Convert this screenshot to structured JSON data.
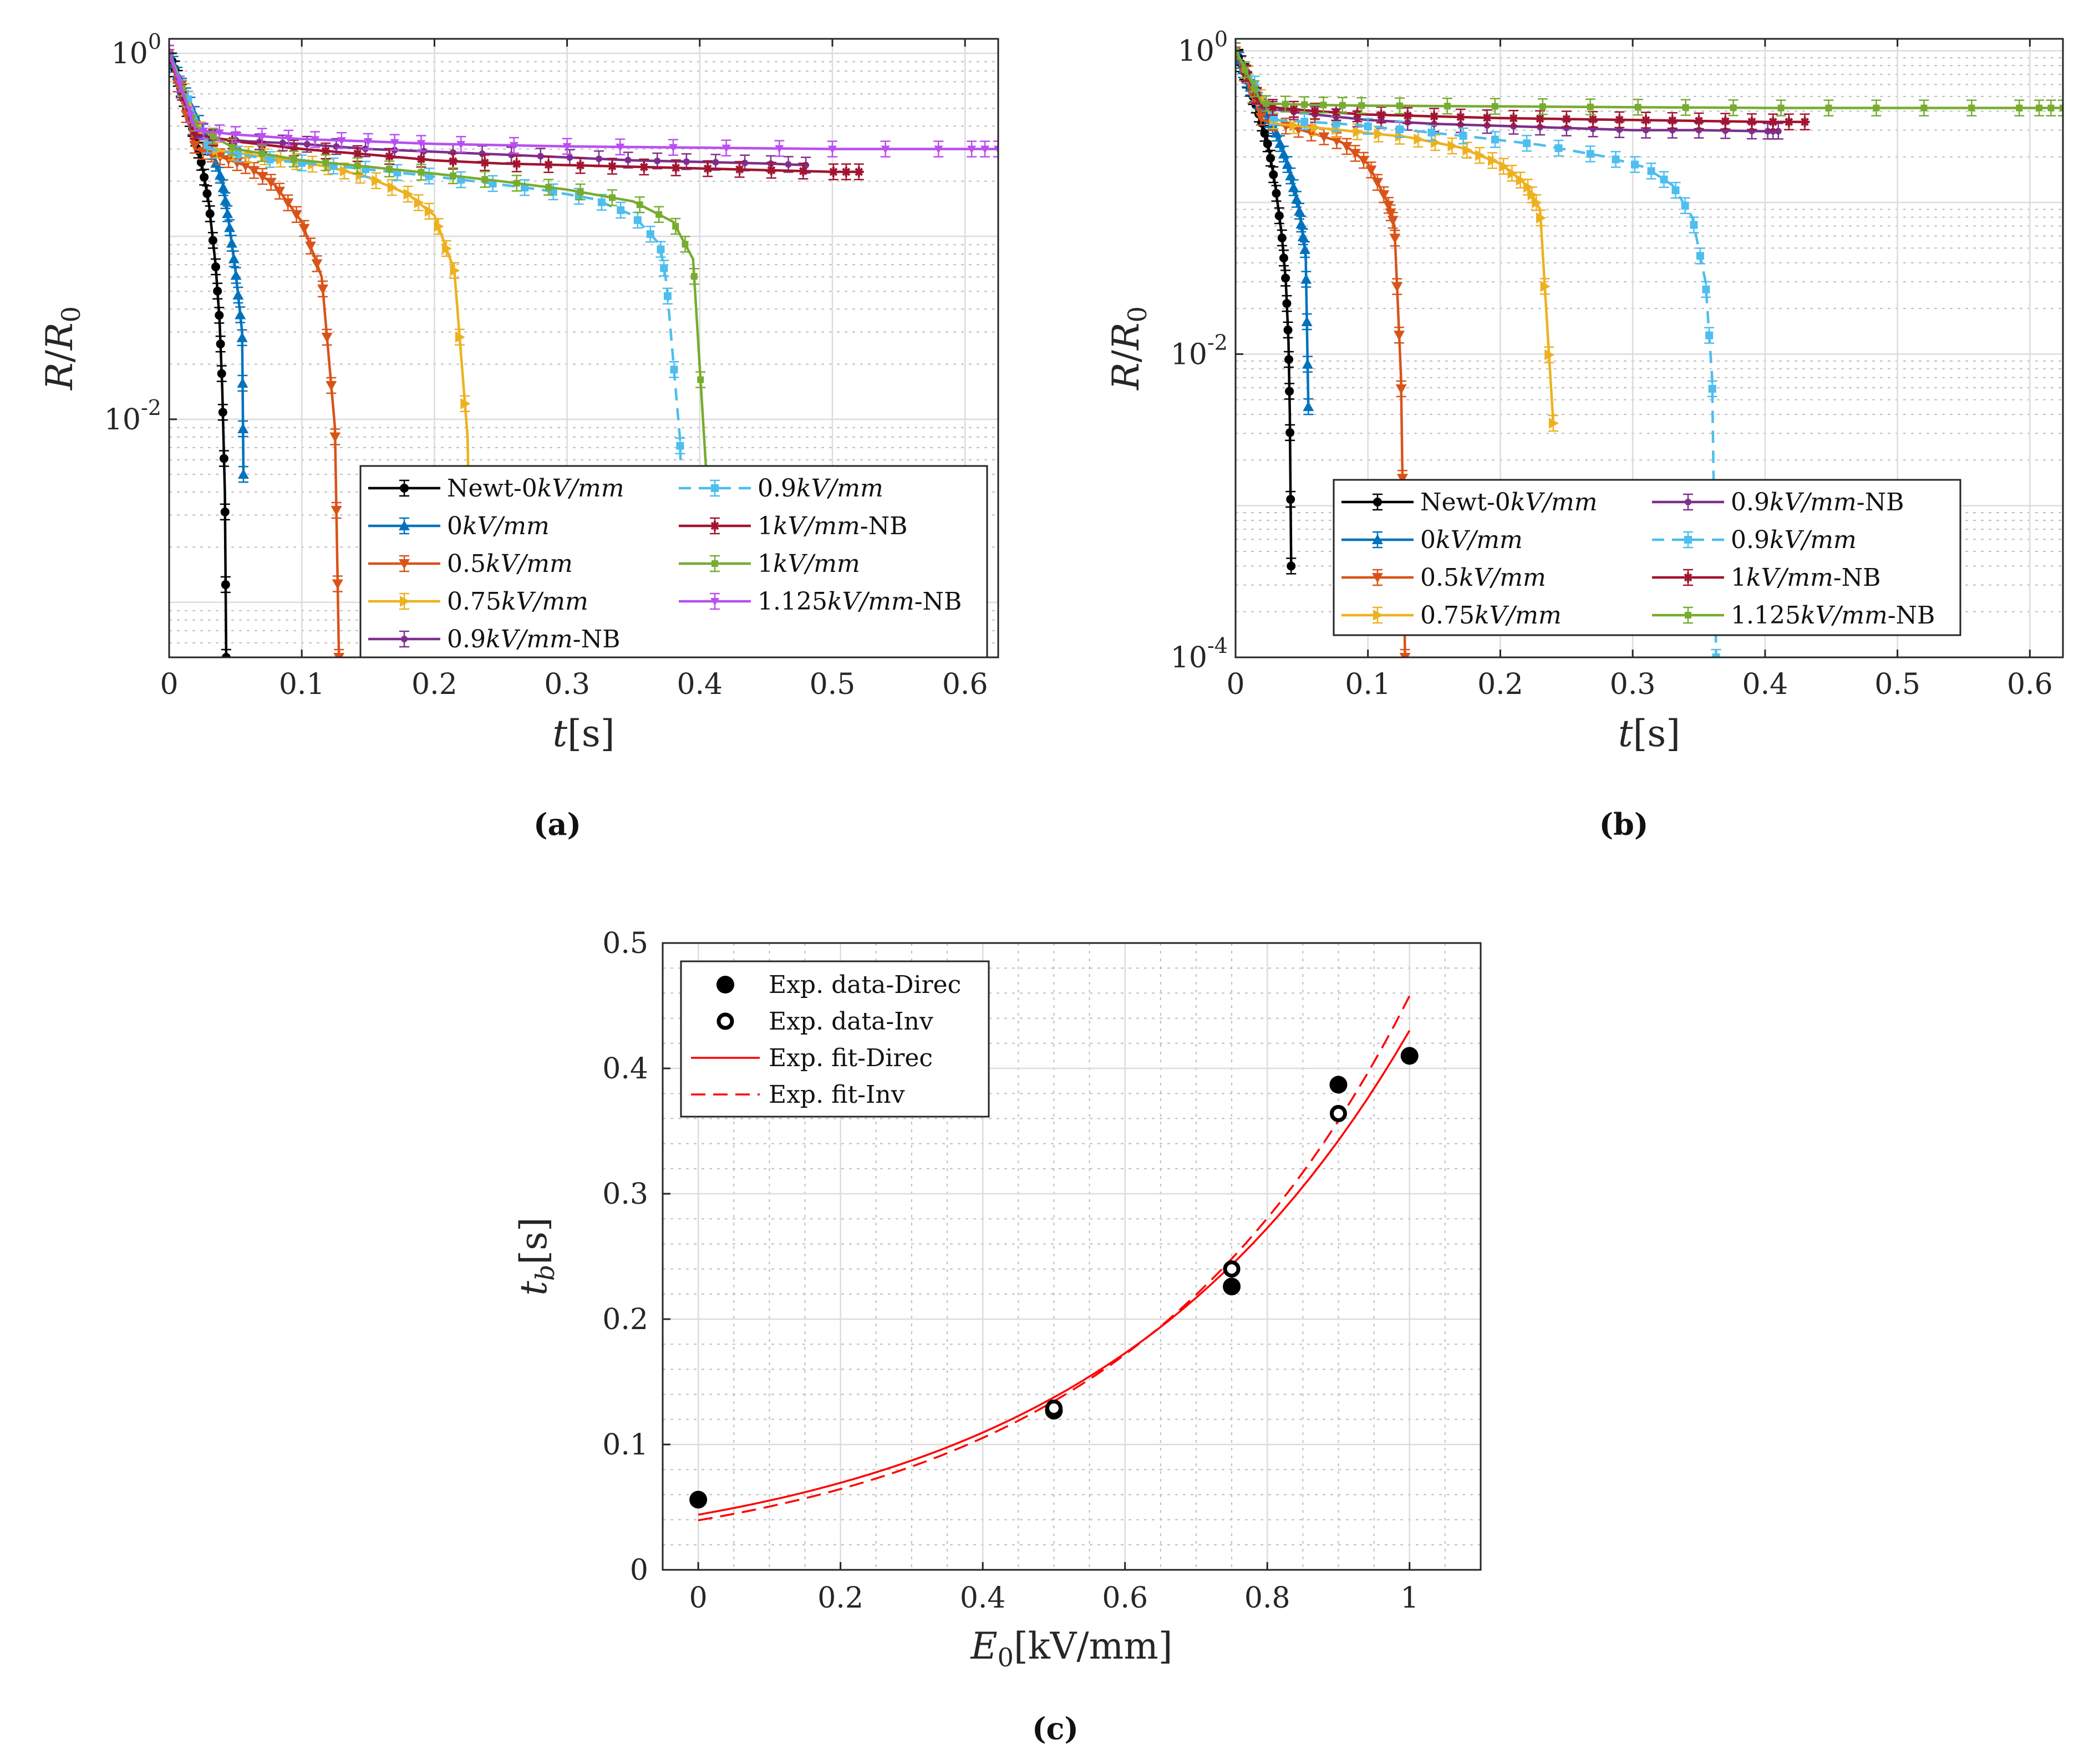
{
  "chart_data": [
    {
      "panel": "(a)",
      "type": "line",
      "xlabel": "t[s]",
      "ylabel": "R/R0",
      "yscale": "log",
      "xlim": [
        0,
        0.625
      ],
      "ylim": [
        0.0005,
        1.2
      ],
      "xticks": [
        "0",
        "0.1",
        "0.2",
        "0.3",
        "0.4",
        "0.5",
        "0.6"
      ],
      "yticks": [
        {
          "base": "10",
          "exp": "0"
        },
        {
          "base": "10",
          "exp": "-2"
        }
      ],
      "legend_position": "bottom-right (2 columns)",
      "series": [
        {
          "name": "Newt-0kV/mm",
          "color": "#000000",
          "marker": "circle",
          "dashed": false,
          "points": [
            [
              0,
              1
            ],
            [
              0.005,
              0.8
            ],
            [
              0.01,
              0.6
            ],
            [
              0.015,
              0.45
            ],
            [
              0.02,
              0.34
            ],
            [
              0.025,
              0.24
            ],
            [
              0.03,
              0.15
            ],
            [
              0.035,
              0.07
            ],
            [
              0.038,
              0.035
            ],
            [
              0.04,
              0.015
            ],
            [
              0.042,
              0.004
            ],
            [
              0.043,
              0.0005
            ]
          ]
        },
        {
          "name": "0kV/mm",
          "color": "#0072bd",
          "marker": "triangle-up",
          "dashed": false,
          "points": [
            [
              0,
              1
            ],
            [
              0.01,
              0.65
            ],
            [
              0.02,
              0.45
            ],
            [
              0.03,
              0.32
            ],
            [
              0.04,
              0.2
            ],
            [
              0.045,
              0.12
            ],
            [
              0.05,
              0.065
            ],
            [
              0.055,
              0.03
            ],
            [
              0.056,
              0.005
            ]
          ]
        },
        {
          "name": "0.5kV/mm",
          "color": "#d95319",
          "marker": "triangle-down",
          "dashed": false,
          "points": [
            [
              0,
              1
            ],
            [
              0.02,
              0.3
            ],
            [
              0.04,
              0.27
            ],
            [
              0.06,
              0.24
            ],
            [
              0.08,
              0.19
            ],
            [
              0.1,
              0.12
            ],
            [
              0.115,
              0.06
            ],
            [
              0.125,
              0.009
            ],
            [
              0.128,
              0.0005
            ]
          ]
        },
        {
          "name": "0.75kV/mm",
          "color": "#edb120",
          "marker": "triangle-right",
          "dashed": false,
          "points": [
            [
              0,
              1
            ],
            [
              0.03,
              0.3
            ],
            [
              0.06,
              0.28
            ],
            [
              0.09,
              0.26
            ],
            [
              0.12,
              0.24
            ],
            [
              0.15,
              0.21
            ],
            [
              0.18,
              0.17
            ],
            [
              0.2,
              0.13
            ],
            [
              0.215,
              0.065
            ],
            [
              0.225,
              0.008
            ],
            [
              0.228,
              0.0005
            ]
          ]
        },
        {
          "name": "0.9kV/mm-NB",
          "color": "#7e2f8e",
          "marker": "circle-small",
          "dashed": false,
          "points": [
            [
              0,
              1
            ],
            [
              0.02,
              0.35
            ],
            [
              0.06,
              0.33
            ],
            [
              0.1,
              0.32
            ],
            [
              0.15,
              0.3
            ],
            [
              0.2,
              0.29
            ],
            [
              0.25,
              0.28
            ],
            [
              0.3,
              0.27
            ],
            [
              0.35,
              0.26
            ],
            [
              0.4,
              0.255
            ],
            [
              0.45,
              0.25
            ],
            [
              0.48,
              0.245
            ]
          ]
        },
        {
          "name": "0.9kV/mm",
          "color": "#4dbeee",
          "marker": "square",
          "dashed": true,
          "points": [
            [
              0,
              1
            ],
            [
              0.03,
              0.3
            ],
            [
              0.08,
              0.26
            ],
            [
              0.13,
              0.24
            ],
            [
              0.18,
              0.22
            ],
            [
              0.23,
              0.2
            ],
            [
              0.28,
              0.18
            ],
            [
              0.32,
              0.16
            ],
            [
              0.35,
              0.13
            ],
            [
              0.37,
              0.09
            ],
            [
              0.375,
              0.055
            ],
            [
              0.385,
              0.008
            ],
            [
              0.39,
              0.0005
            ]
          ]
        },
        {
          "name": "1kV/mm-NB",
          "color": "#a2142f",
          "marker": "star",
          "dashed": false,
          "points": [
            [
              0,
              1
            ],
            [
              0.02,
              0.36
            ],
            [
              0.05,
              0.33
            ],
            [
              0.1,
              0.3
            ],
            [
              0.15,
              0.28
            ],
            [
              0.2,
              0.26
            ],
            [
              0.25,
              0.25
            ],
            [
              0.3,
              0.245
            ],
            [
              0.35,
              0.24
            ],
            [
              0.4,
              0.235
            ],
            [
              0.45,
              0.23
            ],
            [
              0.5,
              0.225
            ],
            [
              0.52,
              0.225
            ]
          ]
        },
        {
          "name": "1kV/mm",
          "color": "#77ac30",
          "marker": "square-small",
          "dashed": false,
          "points": [
            [
              0,
              1
            ],
            [
              0.02,
              0.4
            ],
            [
              0.05,
              0.3
            ],
            [
              0.1,
              0.26
            ],
            [
              0.15,
              0.24
            ],
            [
              0.2,
              0.22
            ],
            [
              0.25,
              0.2
            ],
            [
              0.3,
              0.18
            ],
            [
              0.35,
              0.155
            ],
            [
              0.38,
              0.12
            ],
            [
              0.395,
              0.075
            ],
            [
              0.405,
              0.005
            ],
            [
              0.407,
              0.0005
            ]
          ]
        },
        {
          "name": "1.125kV/mm-NB",
          "color": "#b94ff2",
          "marker": "triangle-down-small",
          "dashed": false,
          "points": [
            [
              0,
              1
            ],
            [
              0.02,
              0.38
            ],
            [
              0.05,
              0.36
            ],
            [
              0.1,
              0.34
            ],
            [
              0.15,
              0.33
            ],
            [
              0.2,
              0.32
            ],
            [
              0.3,
              0.31
            ],
            [
              0.4,
              0.305
            ],
            [
              0.5,
              0.3
            ],
            [
              0.6,
              0.3
            ],
            [
              0.625,
              0.3
            ]
          ]
        }
      ]
    },
    {
      "panel": "(b)",
      "type": "line",
      "xlabel": "t[s]",
      "ylabel": "R/R0",
      "yscale": "log",
      "xlim": [
        0,
        0.625
      ],
      "ylim": [
        0.0001,
        1.2
      ],
      "xticks": [
        "0",
        "0.1",
        "0.2",
        "0.3",
        "0.4",
        "0.5",
        "0.6"
      ],
      "yticks": [
        {
          "base": "10",
          "exp": "0"
        },
        {
          "base": "10",
          "exp": "-2"
        },
        {
          "base": "10",
          "exp": "-4"
        }
      ],
      "legend_position": "bottom-right (2 columns)",
      "series": [
        {
          "name": "Newt-0kV/mm",
          "color": "#000000",
          "marker": "circle",
          "dashed": false,
          "points": [
            [
              0,
              1
            ],
            [
              0.005,
              0.8
            ],
            [
              0.01,
              0.6
            ],
            [
              0.015,
              0.45
            ],
            [
              0.02,
              0.33
            ],
            [
              0.025,
              0.23
            ],
            [
              0.03,
              0.13
            ],
            [
              0.035,
              0.06
            ],
            [
              0.038,
              0.03
            ],
            [
              0.04,
              0.012
            ],
            [
              0.041,
              0.004
            ],
            [
              0.042,
              0.0004
            ]
          ]
        },
        {
          "name": "0kV/mm",
          "color": "#0072bd",
          "marker": "triangle-up",
          "dashed": false,
          "points": [
            [
              0,
              1
            ],
            [
              0.01,
              0.6
            ],
            [
              0.02,
              0.42
            ],
            [
              0.03,
              0.3
            ],
            [
              0.04,
              0.17
            ],
            [
              0.048,
              0.09
            ],
            [
              0.053,
              0.045
            ],
            [
              0.055,
              0.0045
            ]
          ]
        },
        {
          "name": "0.5kV/mm",
          "color": "#d95319",
          "marker": "triangle-down",
          "dashed": false,
          "points": [
            [
              0,
              1
            ],
            [
              0.02,
              0.35
            ],
            [
              0.05,
              0.3
            ],
            [
              0.08,
              0.25
            ],
            [
              0.1,
              0.18
            ],
            [
              0.115,
              0.1
            ],
            [
              0.12,
              0.07
            ],
            [
              0.125,
              0.007
            ],
            [
              0.128,
              0.0001
            ]
          ]
        },
        {
          "name": "0.75kV/mm",
          "color": "#edb120",
          "marker": "triangle-right",
          "dashed": false,
          "points": [
            [
              0,
              1
            ],
            [
              0.03,
              0.33
            ],
            [
              0.08,
              0.3
            ],
            [
              0.13,
              0.27
            ],
            [
              0.17,
              0.23
            ],
            [
              0.2,
              0.18
            ],
            [
              0.22,
              0.13
            ],
            [
              0.23,
              0.09
            ],
            [
              0.24,
              0.0035
            ]
          ]
        },
        {
          "name": "0.9kV/mm-NB",
          "color": "#7e2f8e",
          "marker": "circle-small",
          "dashed": false,
          "points": [
            [
              0,
              1
            ],
            [
              0.02,
              0.42
            ],
            [
              0.06,
              0.38
            ],
            [
              0.1,
              0.35
            ],
            [
              0.15,
              0.33
            ],
            [
              0.2,
              0.32
            ],
            [
              0.25,
              0.31
            ],
            [
              0.3,
              0.3
            ],
            [
              0.35,
              0.3
            ],
            [
              0.4,
              0.295
            ],
            [
              0.41,
              0.295
            ]
          ]
        },
        {
          "name": "0.9kV/mm",
          "color": "#4dbeee",
          "marker": "square",
          "dashed": true,
          "points": [
            [
              0,
              1
            ],
            [
              0.03,
              0.35
            ],
            [
              0.08,
              0.33
            ],
            [
              0.13,
              0.3
            ],
            [
              0.18,
              0.27
            ],
            [
              0.23,
              0.24
            ],
            [
              0.28,
              0.2
            ],
            [
              0.31,
              0.17
            ],
            [
              0.33,
              0.13
            ],
            [
              0.345,
              0.08
            ],
            [
              0.355,
              0.03
            ],
            [
              0.36,
              0.007
            ],
            [
              0.363,
              0.0001
            ]
          ]
        },
        {
          "name": "1kV/mm-NB",
          "color": "#a2142f",
          "marker": "star",
          "dashed": false,
          "points": [
            [
              0,
              1
            ],
            [
              0.02,
              0.43
            ],
            [
              0.06,
              0.4
            ],
            [
              0.1,
              0.38
            ],
            [
              0.15,
              0.37
            ],
            [
              0.2,
              0.36
            ],
            [
              0.25,
              0.355
            ],
            [
              0.3,
              0.35
            ],
            [
              0.35,
              0.345
            ],
            [
              0.4,
              0.34
            ],
            [
              0.43,
              0.34
            ]
          ]
        },
        {
          "name": "1.125kV/mm-NB",
          "color": "#77ac30",
          "marker": "square-small",
          "dashed": false,
          "points": [
            [
              0,
              1
            ],
            [
              0.02,
              0.45
            ],
            [
              0.06,
              0.44
            ],
            [
              0.1,
              0.435
            ],
            [
              0.2,
              0.43
            ],
            [
              0.3,
              0.425
            ],
            [
              0.4,
              0.42
            ],
            [
              0.5,
              0.42
            ],
            [
              0.6,
              0.42
            ],
            [
              0.625,
              0.42
            ]
          ]
        }
      ]
    },
    {
      "panel": "(c)",
      "type": "scatter",
      "xlabel": "E0[kV/mm]",
      "ylabel": "tb[s]",
      "xlim": [
        -0.05,
        1.1
      ],
      "ylim": [
        0,
        0.5
      ],
      "xticks": [
        "0",
        "0.2",
        "0.4",
        "0.6",
        "0.8",
        "1"
      ],
      "yticks": [
        "0",
        "0.1",
        "0.2",
        "0.3",
        "0.4",
        "0.5"
      ],
      "legend_position": "top-left",
      "series": [
        {
          "name": "Exp. data-Direc",
          "style": "filled-circle",
          "color": "#000000",
          "x": [
            0,
            0.5,
            0.75,
            0.9,
            1.0
          ],
          "y": [
            0.056,
            0.127,
            0.226,
            0.387,
            0.41
          ]
        },
        {
          "name": "Exp. data-Inv",
          "style": "open-circle",
          "color": "#000000",
          "x": [
            0.5,
            0.75,
            0.9
          ],
          "y": [
            0.129,
            0.24,
            0.364
          ]
        },
        {
          "name": "Exp. fit-Direc",
          "style": "solid-line",
          "color": "#ff0000",
          "fit": {
            "a": 0.044,
            "b": 2.28
          }
        },
        {
          "name": "Exp. fit-Inv",
          "style": "dashed-line",
          "color": "#ff0000",
          "fit": {
            "a": 0.0395,
            "b": 2.45
          }
        }
      ]
    }
  ],
  "legends": {
    "a": [
      [
        "Newt-0",
        "kV/mm",
        ""
      ],
      [
        "0.9",
        "kV/mm",
        ""
      ],
      [
        "0",
        "kV/mm",
        ""
      ],
      [
        "1",
        "kV/mm",
        "-NB"
      ],
      [
        "0.5",
        "kV/mm",
        ""
      ],
      [
        "1",
        "kV/mm",
        ""
      ],
      [
        "0.75",
        "kV/mm",
        ""
      ],
      [
        "1.125",
        "kV/mm",
        "-NB"
      ],
      [
        "0.9",
        "kV/mm",
        "-NB"
      ]
    ],
    "b": [
      [
        "Newt-0",
        "kV/mm",
        ""
      ],
      [
        "0.9",
        "kV/mm",
        "-NB"
      ],
      [
        "0",
        "kV/mm",
        ""
      ],
      [
        "0.9",
        "kV/mm",
        ""
      ],
      [
        "0.5",
        "kV/mm",
        ""
      ],
      [
        "1",
        "kV/mm",
        "-NB"
      ],
      [
        "0.75",
        "kV/mm",
        ""
      ],
      [
        "1.125",
        "kV/mm",
        "-NB"
      ]
    ],
    "c": [
      "Exp. data-Direc",
      "Exp. data-Inv",
      "Exp. fit-Direc",
      "Exp. fit-Inv"
    ]
  },
  "labels": {
    "panel_a": "(a)",
    "panel_b": "(b)",
    "panel_c": "(c)",
    "t_letter": "t",
    "t_unit": "[s]",
    "r_letter": "R",
    "r0_letter": "R",
    "r0_sub": "0",
    "tb_letter": "t",
    "tb_sub": "b",
    "tb_unit": "[s]",
    "e_letter": "E",
    "e_sub": "0",
    "e_unit": "[kV/mm]"
  }
}
